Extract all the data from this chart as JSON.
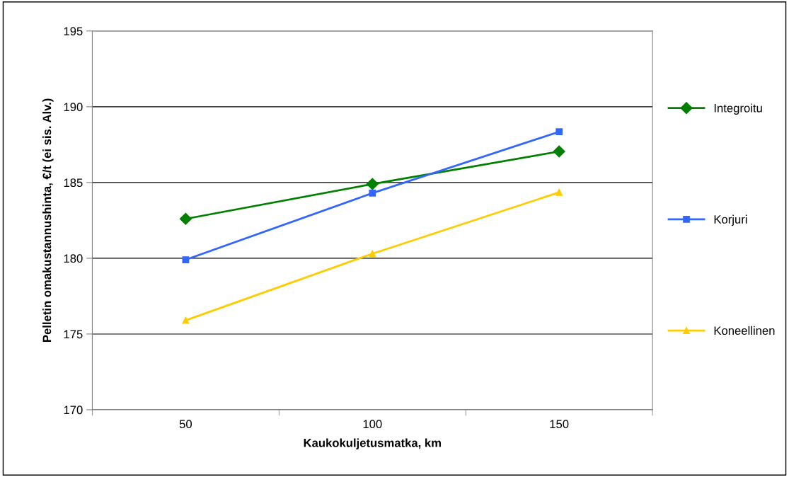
{
  "chart_data": {
    "type": "line",
    "xlabel": "Kaukokuljetusmatka, km",
    "ylabel": "Pelletin omakustannushinta, €/t (ei sis. Alv.)",
    "categories": [
      "50",
      "100",
      "150"
    ],
    "series": [
      {
        "name": "Integroitu",
        "color": "#008000",
        "marker": "diamond",
        "values": [
          182.6,
          184.9,
          187.05
        ]
      },
      {
        "name": "Korjuri",
        "color": "#3366ff",
        "marker": "square",
        "values": [
          179.9,
          184.3,
          188.35
        ]
      },
      {
        "name": "Koneellinen",
        "color": "#ffcc00",
        "marker": "triangle",
        "values": [
          175.9,
          180.3,
          184.35
        ]
      }
    ],
    "ylim": [
      170,
      195
    ],
    "yticks": [
      170,
      175,
      180,
      185,
      190,
      195
    ],
    "grid": "y",
    "legend": "right"
  }
}
